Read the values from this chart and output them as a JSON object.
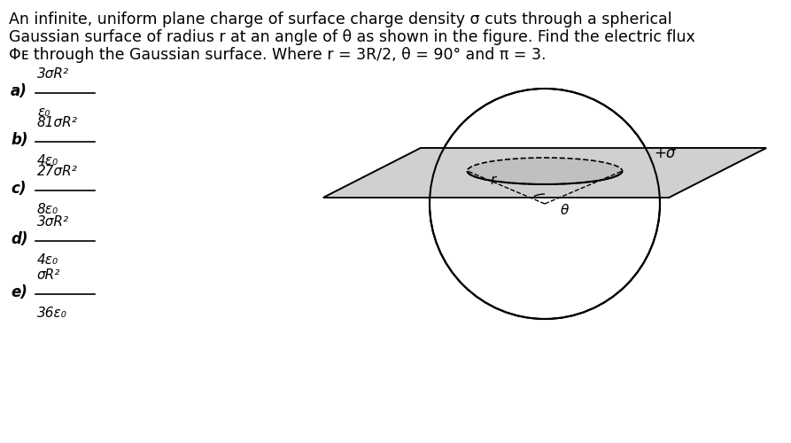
{
  "title_line1": "An infinite, uniform plane charge of surface charge density σ cuts through a spherical",
  "title_line2": "Gaussian surface of radius r at an angle of θ as shown in the figure. Find the electric flux",
  "title_line3": "Φᴇ through the Gaussian surface. Where r = 3R/2, θ = 90° and π = 3.",
  "options": [
    {
      "label": "a)",
      "numerator": "3σR²",
      "denominator": "ε₀"
    },
    {
      "label": "b)",
      "numerator": "81σR²",
      "denominator": "4ε₀"
    },
    {
      "label": "c)",
      "numerator": "27σR²",
      "denominator": "8ε₀"
    },
    {
      "label": "d)",
      "numerator": "3σR²",
      "denominator": "4ε₀"
    },
    {
      "label": "e)",
      "numerator": "σR²",
      "denominator": "36ε₀"
    }
  ],
  "background_color": "#ffffff",
  "text_color": "#000000",
  "plane_hatch_color": "#c8c8c8",
  "plane_edge_color": "#000000",
  "sphere_fill": "#ffffff",
  "ellipse_fill": "#c0c0c0",
  "plus_sigma": "+σ",
  "label_r": "r",
  "label_theta": "θ"
}
